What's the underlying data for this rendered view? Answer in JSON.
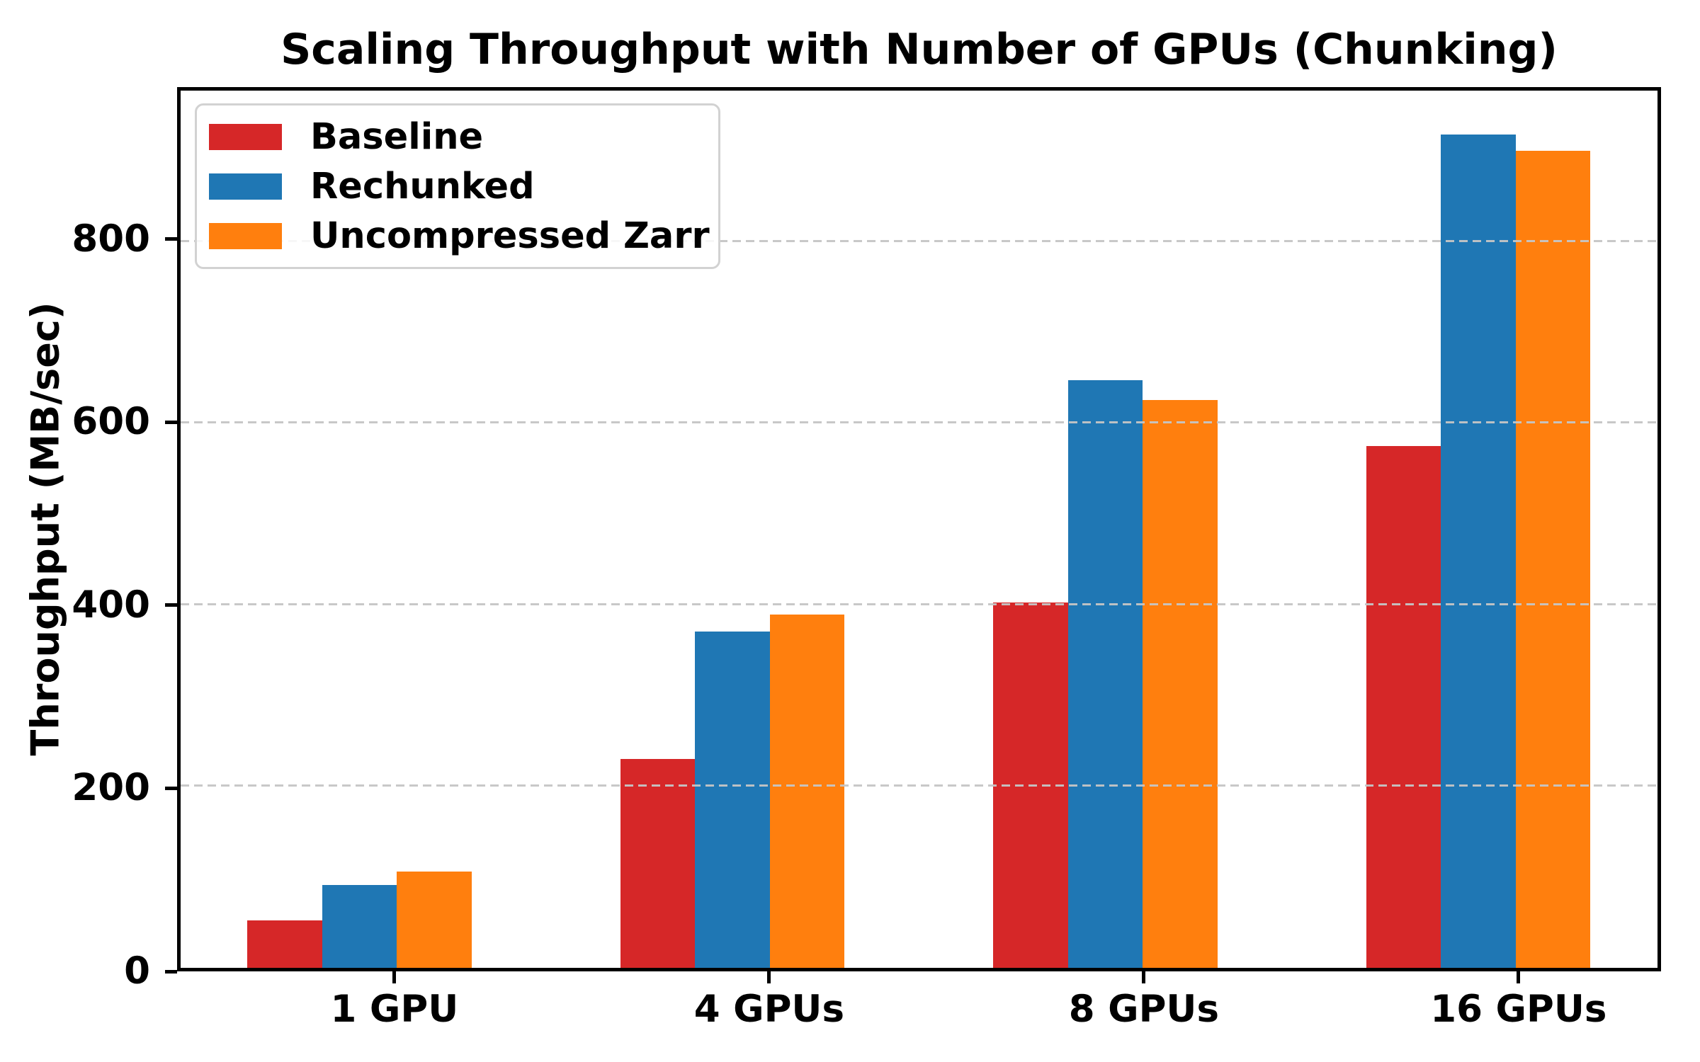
{
  "chart_data": {
    "type": "bar",
    "title": "Scaling Throughput with Number of GPUs (Chunking)",
    "xlabel": "",
    "ylabel": "Throughput (MB/sec)",
    "categories": [
      "1 GPU",
      "4 GPUs",
      "8 GPUs",
      "16 GPUs"
    ],
    "series": [
      {
        "name": "Baseline",
        "color": "#d62728",
        "values": [
          52,
          230,
          402,
          575
        ]
      },
      {
        "name": "Rechunked",
        "color": "#1f77b4",
        "values": [
          91,
          370,
          647,
          918
        ]
      },
      {
        "name": "Uncompressed Zarr",
        "color": "#ff7f0e",
        "values": [
          106,
          389,
          625,
          900
        ]
      }
    ],
    "ylim": [
      0,
      966
    ],
    "yticks": [
      0,
      200,
      400,
      600,
      800
    ],
    "grid": "horizontal-dashed-above-bars",
    "legend_position": "upper-left"
  },
  "colors": {
    "axis": "#000000",
    "gridline": "#c5c5c5",
    "legend_border": "#d2d2d2",
    "background": "#ffffff"
  }
}
